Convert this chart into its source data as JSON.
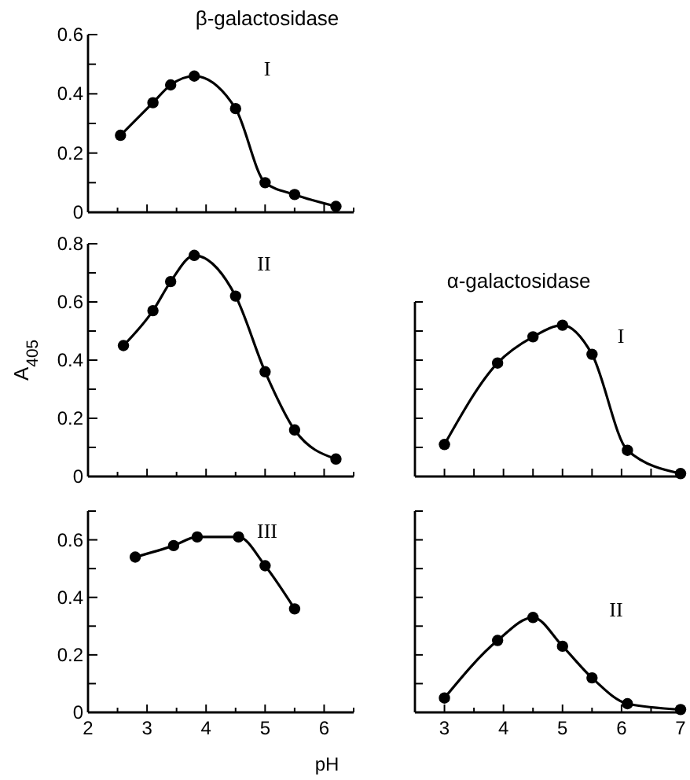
{
  "chart_data": [
    {
      "type": "line",
      "title": "β-galactosidase",
      "annotations": [
        "I"
      ],
      "marker": "circle",
      "tick_labels": "y",
      "xlim": [
        2,
        6.5
      ],
      "ylim": [
        0,
        0.6
      ],
      "xticks": [
        2,
        {
          "value": 2.5,
          "label": null
        },
        3,
        {
          "value": 3.5,
          "label": null
        },
        4,
        {
          "value": 4.5,
          "label": null
        },
        5,
        {
          "value": 5.5,
          "label": null
        },
        6,
        {
          "value": 6.5,
          "label": null
        }
      ],
      "yticks": [
        0,
        {
          "value": 0.1,
          "label": null
        },
        0.2,
        {
          "value": 0.3,
          "label": null
        },
        0.4,
        {
          "value": 0.5,
          "label": null
        },
        0.6
      ],
      "series": [
        {
          "color": "#000000",
          "x": [
            2.55,
            3.1,
            3.4,
            3.8,
            4.5,
            5.0,
            5.5,
            6.2
          ],
          "values": [
            0.26,
            0.37,
            0.43,
            0.46,
            0.35,
            0.1,
            0.06,
            0.02
          ]
        }
      ]
    },
    {
      "type": "line",
      "ylabel": "A$_{405}$",
      "annotations": [
        "II"
      ],
      "marker": "circle",
      "tick_labels": "y",
      "xlim": [
        2,
        6.5
      ],
      "ylim": [
        0,
        0.8
      ],
      "xticks": [
        2,
        {
          "value": 2.5,
          "label": null
        },
        3,
        {
          "value": 3.5,
          "label": null
        },
        4,
        {
          "value": 4.5,
          "label": null
        },
        5,
        {
          "value": 5.5,
          "label": null
        },
        6,
        {
          "value": 6.5,
          "label": null
        }
      ],
      "yticks": [
        0,
        {
          "value": 0.1,
          "label": null
        },
        0.2,
        {
          "value": 0.3,
          "label": null
        },
        0.4,
        {
          "value": 0.5,
          "label": null
        },
        0.6,
        {
          "value": 0.7,
          "label": null
        },
        0.8
      ],
      "series": [
        {
          "color": "#000000",
          "x": [
            2.6,
            3.1,
            3.4,
            3.8,
            4.5,
            5.0,
            5.5,
            6.2
          ],
          "values": [
            0.45,
            0.57,
            0.67,
            0.76,
            0.62,
            0.36,
            0.16,
            0.06
          ]
        }
      ]
    },
    {
      "type": "line",
      "annotations": [
        "III"
      ],
      "marker": "circle",
      "xlim": [
        2,
        6.5
      ],
      "ylim": [
        0,
        0.7
      ],
      "xticks": [
        2,
        {
          "value": 2.5,
          "label": null
        },
        3,
        {
          "value": 3.5,
          "label": null
        },
        4,
        {
          "value": 4.5,
          "label": null
        },
        5,
        {
          "value": 5.5,
          "label": null
        },
        6,
        {
          "value": 6.5,
          "label": null
        }
      ],
      "yticks": [
        0,
        {
          "value": 0.1,
          "label": null
        },
        0.2,
        {
          "value": 0.3,
          "label": null
        },
        0.4,
        {
          "value": 0.5,
          "label": null
        },
        0.6,
        {
          "value": 0.7,
          "label": null
        }
      ],
      "series": [
        {
          "color": "#000000",
          "x": [
            2.8,
            3.45,
            3.85,
            4.55,
            5.0,
            5.5
          ],
          "values": [
            0.54,
            0.58,
            0.61,
            0.61,
            0.51,
            0.36
          ]
        }
      ]
    },
    {
      "type": "line",
      "title": "α-galactosidase",
      "annotations": [
        "I"
      ],
      "marker": "circle",
      "tick_labels": false,
      "xlim": [
        2.5,
        7
      ],
      "ylim": [
        0,
        0.6
      ],
      "xticks": [
        3,
        3.5,
        4,
        4.5,
        5,
        5.5,
        6,
        6.5,
        7
      ],
      "yticks": [
        0,
        0.1,
        0.2,
        0.3,
        0.4,
        0.5,
        0.6
      ],
      "series": [
        {
          "color": "#000000",
          "x": [
            3.0,
            3.9,
            4.5,
            5.0,
            5.5,
            6.1,
            7.0
          ],
          "values": [
            0.11,
            0.39,
            0.48,
            0.52,
            0.42,
            0.09,
            0.01
          ]
        }
      ]
    },
    {
      "type": "line",
      "xlabel": "pH",
      "annotations": [
        "II"
      ],
      "marker": "circle",
      "tick_labels": "x",
      "xlim": [
        2.5,
        7
      ],
      "ylim": [
        0,
        0.7
      ],
      "xticks": [
        3,
        {
          "value": 3.5,
          "label": null
        },
        4,
        {
          "value": 4.5,
          "label": null
        },
        5,
        {
          "value": 5.5,
          "label": null
        },
        6,
        {
          "value": 6.5,
          "label": null
        },
        7
      ],
      "yticks": [
        0,
        0.1,
        0.2,
        0.3,
        0.4,
        0.5,
        0.6,
        0.7
      ],
      "series": [
        {
          "color": "#000000",
          "x": [
            3.0,
            3.9,
            4.5,
            5.0,
            5.5,
            6.1,
            7.0
          ],
          "values": [
            0.05,
            0.25,
            0.33,
            0.23,
            0.12,
            0.03,
            0.01
          ]
        }
      ]
    }
  ]
}
